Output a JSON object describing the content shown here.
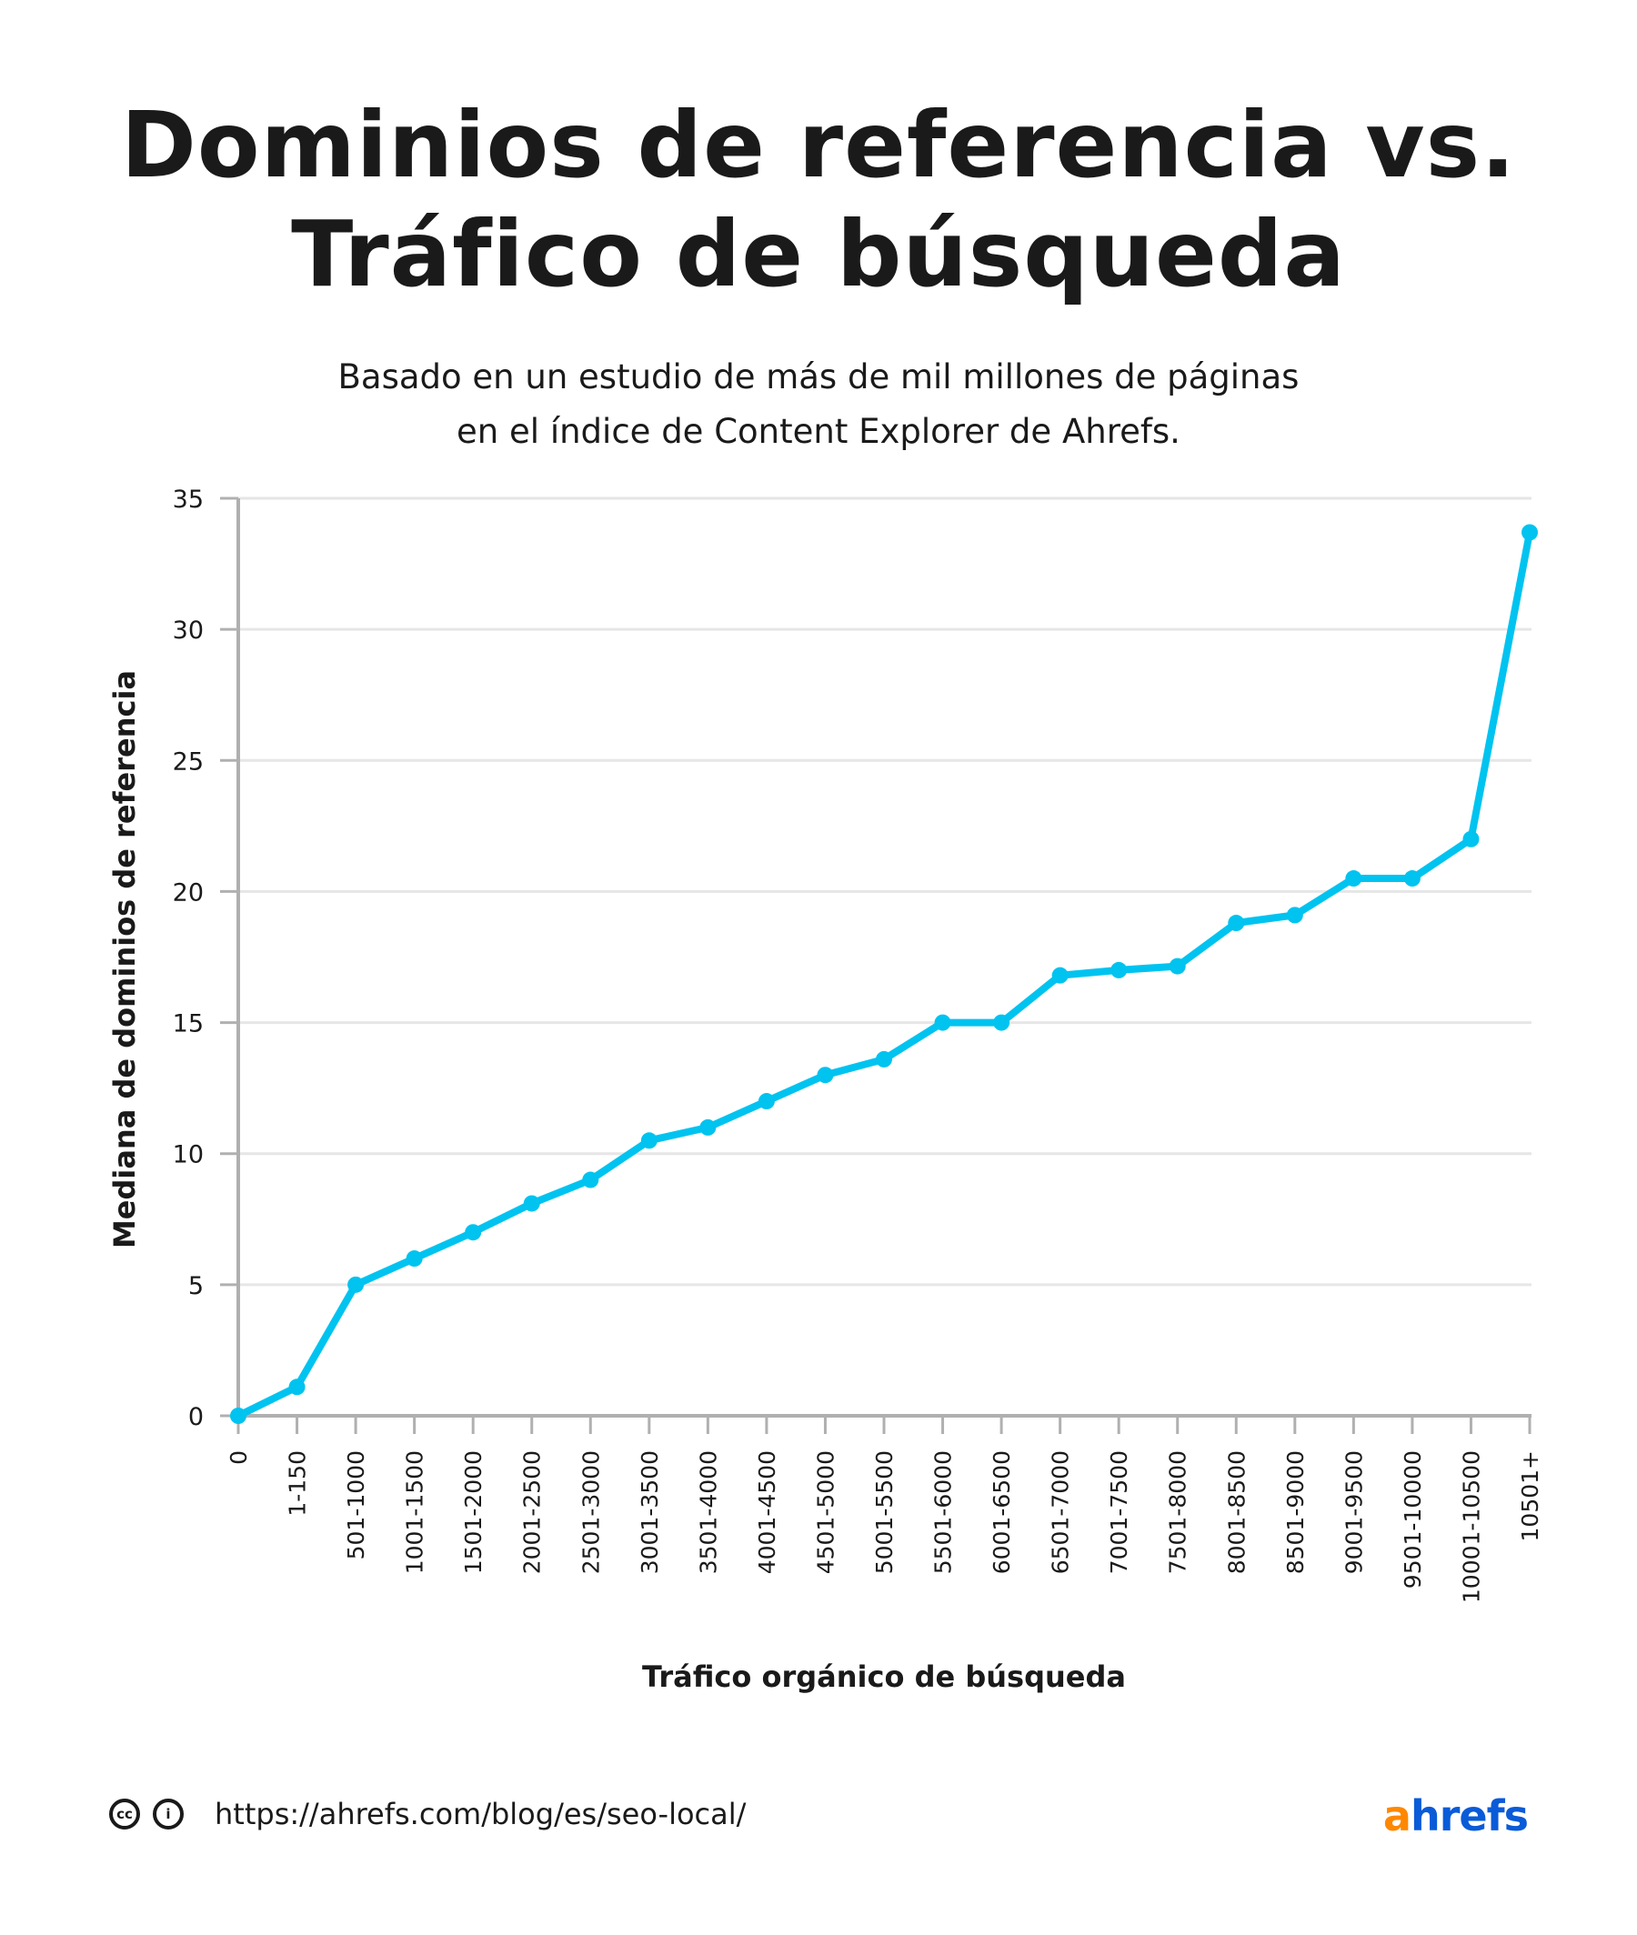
{
  "header": {
    "title_line1": "Dominios de referencia vs.",
    "title_line2": "Tráfico de búsqueda",
    "subtitle_line1": "Basado en un estudio de más de mil millones de páginas",
    "subtitle_line2": "en el índice  de Content Explorer de Ahrefs."
  },
  "chart_data": {
    "type": "line",
    "title": "Dominios de referencia vs. Tráfico de búsqueda",
    "xlabel": "Tráfico orgánico de búsqueda",
    "ylabel": "Mediana de dominios de referencia",
    "ylim": [
      0,
      35
    ],
    "yticks": [
      0,
      5,
      10,
      15,
      20,
      25,
      30,
      35
    ],
    "grid": true,
    "line_color": "#00c3f0",
    "categories": [
      "0",
      "1-150",
      "501-1000",
      "1001-1500",
      "1501-2000",
      "2001-2500",
      "2501-3000",
      "3001-3500",
      "3501-4000",
      "4001-4500",
      "4501-5000",
      "5001-5500",
      "5501-6000",
      "6001-6500",
      "6501-7000",
      "7001-7500",
      "7501-8000",
      "8001-8500",
      "8501-9000",
      "9001-9500",
      "9501-10000",
      "10001-10500",
      "10501+"
    ],
    "values": [
      0,
      1.1,
      5,
      6,
      7,
      8.1,
      9,
      10.5,
      11,
      12,
      13,
      13.6,
      15,
      15,
      16.8,
      17,
      17.15,
      18.8,
      19.1,
      20.5,
      20.5,
      22,
      33.7
    ]
  },
  "footer": {
    "url": "https://ahrefs.com/blog/es/seo-local/",
    "cc_icon": "creative-commons-icon",
    "by_icon": "attribution-icon",
    "logo_a": "a",
    "logo_rest": "hrefs",
    "logo_colors": {
      "a": "#ff8800",
      "rest": "#0a5bd8"
    }
  }
}
